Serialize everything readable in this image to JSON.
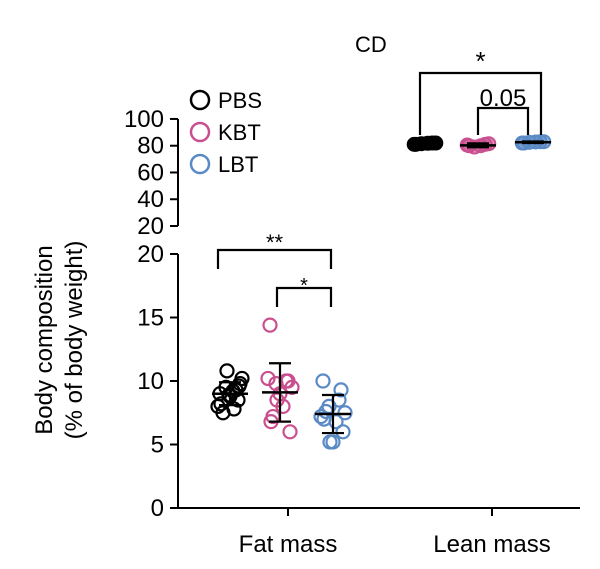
{
  "chart_data": {
    "type": "scatter",
    "title": "CD",
    "xlabel": "",
    "ylabel": "Body composition\n(% of body weight)",
    "ylabel_lines": [
      "Body composition",
      "(% of body weight)"
    ],
    "categories": [
      "Fat mass",
      "Lean mass"
    ],
    "y_axis_broken": true,
    "lower_ylim": [
      0,
      20
    ],
    "lower_ticks": [
      "0",
      "5",
      "10",
      "15",
      "20"
    ],
    "upper_ylim": [
      20,
      100
    ],
    "upper_ticks": [
      "20",
      "40",
      "60",
      "80",
      "100"
    ],
    "legend_placement": "top-left",
    "series": [
      {
        "name": "PBS",
        "color": "#000000",
        "fill_lean": true,
        "fat": [
          9.0,
          8.5,
          9.5,
          10.2,
          8.0,
          9.2,
          7.5,
          9.8,
          8.8,
          10.8,
          9.3,
          8.2,
          9.6,
          8.9,
          7.8
        ],
        "fat_mean": 9.0,
        "fat_sd": 0.9,
        "lean": [
          81,
          82,
          81.5,
          82,
          81,
          81.8
        ],
        "lean_mean": 81.5,
        "lean_sd": 0.5
      },
      {
        "name": "KBT",
        "color": "#c94f8f",
        "fat": [
          14.4,
          10.0,
          9.8,
          9.5,
          10.2,
          8.0,
          7.2,
          6.0,
          9.0,
          8.5,
          10.0,
          6.8
        ],
        "fat_mean": 9.1,
        "fat_sd": 2.3,
        "lean": [
          80,
          81,
          79,
          81.5,
          80.5,
          80
        ],
        "lean_mean": 80.3,
        "lean_sd": 1.5
      },
      {
        "name": "LBT",
        "color": "#5a8ac6",
        "fat": [
          10.0,
          9.3,
          8.0,
          7.5,
          7.2,
          6.8,
          7.6,
          6.0,
          5.2,
          5.2,
          8.5,
          7.0
        ],
        "fat_mean": 7.4,
        "fat_sd": 1.5,
        "lean": [
          82,
          83,
          82.5,
          83,
          82,
          82.8
        ],
        "lean_mean": 82.6,
        "lean_sd": 0.6
      }
    ],
    "annotations": [
      {
        "text": "**",
        "between": [
          "PBS",
          "LBT"
        ],
        "category": "Fat mass"
      },
      {
        "text": "*",
        "between": [
          "KBT",
          "LBT"
        ],
        "category": "Fat mass"
      },
      {
        "text": "*",
        "between": [
          "PBS",
          "LBT"
        ],
        "category": "Lean mass"
      },
      {
        "text": "0.05",
        "between": [
          "KBT",
          "LBT"
        ],
        "category": "Lean mass"
      }
    ]
  }
}
